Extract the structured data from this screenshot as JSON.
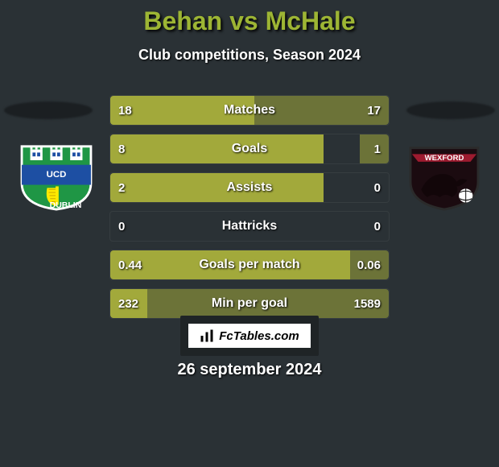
{
  "style": {
    "page_bg": "#2a3135",
    "accent": "#9db534",
    "bar_fill": "#a2a93b",
    "bar_fill_right_opacity": 0.55,
    "shadow": "#1b1f22",
    "fc_border": "#1f2426"
  },
  "header": {
    "title": "Behan vs McHale",
    "subtitle": "Club competitions, Season 2024"
  },
  "footer": {
    "date": "26 september 2024",
    "brand": "FcTables.com"
  },
  "crest_left": {
    "top": "UCD",
    "bottom": "DUBLIN"
  },
  "crest_right": {
    "top": "WEXFORD"
  },
  "bars": {
    "total_width": 348,
    "label_fontsize": 16,
    "value_fontsize": 15,
    "rows": [
      {
        "label": "Matches",
        "left": "18",
        "right": "17",
        "left_w": 180,
        "right_w": 168
      },
      {
        "label": "Goals",
        "left": "8",
        "right": "1",
        "left_w": 265,
        "right_w": 36
      },
      {
        "label": "Assists",
        "left": "2",
        "right": "0",
        "left_w": 265,
        "right_w": 0
      },
      {
        "label": "Hattricks",
        "left": "0",
        "right": "0",
        "left_w": 0,
        "right_w": 0
      },
      {
        "label": "Goals per match",
        "left": "0.44",
        "right": "0.06",
        "left_w": 300,
        "right_w": 48
      },
      {
        "label": "Min per goal",
        "left": "232",
        "right": "1589",
        "left_w": 46,
        "right_w": 302
      }
    ]
  }
}
